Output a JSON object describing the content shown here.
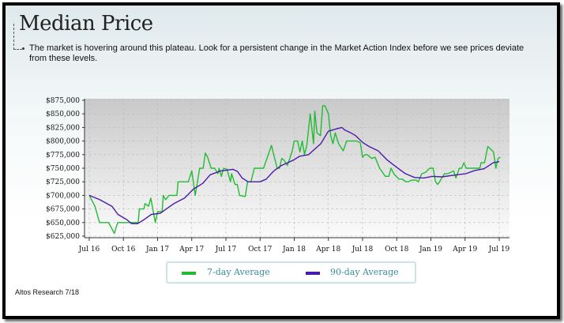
{
  "title": "Median Price",
  "description": "The market is hovering around this plateau. Look for a persistent change in the Market Action Index before we see prices deviate from these levels.",
  "footer": "Altos Research 7/18",
  "chart_data": {
    "type": "line",
    "title": "Median Price",
    "xlabel": "",
    "ylabel": "",
    "x_unit": "months since Jul 2016",
    "xlim": [
      -0.4,
      36.4
    ],
    "ylim": [
      625000,
      875000
    ],
    "grid": true,
    "legend_position": "bottom-center",
    "x_ticks": [
      {
        "m": 0,
        "label": "Jul 16"
      },
      {
        "m": 3,
        "label": "Oct 16"
      },
      {
        "m": 6,
        "label": "Jan 17"
      },
      {
        "m": 9,
        "label": "Apr 17"
      },
      {
        "m": 12,
        "label": "Jul 17"
      },
      {
        "m": 15,
        "label": "Oct 17"
      },
      {
        "m": 18,
        "label": "Jan 18"
      },
      {
        "m": 21,
        "label": "Apr 18"
      },
      {
        "m": 24,
        "label": "Jul 18"
      },
      {
        "m": 27,
        "label": "Oct 18"
      },
      {
        "m": 30,
        "label": "Jan 19"
      },
      {
        "m": 33,
        "label": "Apr 19"
      },
      {
        "m": 36,
        "label": "Jul 19"
      }
    ],
    "y_ticks": [
      {
        "v": 625000,
        "label": "$625,000"
      },
      {
        "v": 650000,
        "label": "$650,000"
      },
      {
        "v": 675000,
        "label": "$675,000"
      },
      {
        "v": 700000,
        "label": "$700,000"
      },
      {
        "v": 725000,
        "label": "$725,000"
      },
      {
        "v": 750000,
        "label": "$750,000"
      },
      {
        "v": 775000,
        "label": "$775,000"
      },
      {
        "v": 800000,
        "label": "$800,000"
      },
      {
        "v": 825000,
        "label": "$825,000"
      },
      {
        "v": 850000,
        "label": "$850,000"
      },
      {
        "v": 875000,
        "label": "$875,000"
      }
    ],
    "series": [
      {
        "name": "7-day Average",
        "color": "#22bb33",
        "x": [
          0,
          0.5,
          0.9,
          1.7,
          2.2,
          2.5,
          2.9,
          3.6,
          4.3,
          4.4,
          4.8,
          4.9,
          5.2,
          5.4,
          5.8,
          6.0,
          6.4,
          6.5,
          6.7,
          7.0,
          7.7,
          7.8,
          8.7,
          9.0,
          9.3,
          9.7,
          10.0,
          10.2,
          10.4,
          10.7,
          11.0,
          11.3,
          11.4,
          11.6,
          11.8,
          12.1,
          12.4,
          12.5,
          12.8,
          13.0,
          13.2,
          13.7,
          13.9,
          14.2,
          14.5,
          14.9,
          15.3,
          15.8,
          16.0,
          16.2,
          16.5,
          16.7,
          16.9,
          17.1,
          17.4,
          17.8,
          18.0,
          18.3,
          18.5,
          18.7,
          18.9,
          19.1,
          19.4,
          19.7,
          19.8,
          20.0,
          20.3,
          20.5,
          20.7,
          21.0,
          21.2,
          21.4,
          21.6,
          21.9,
          22.3,
          22.6,
          23.5,
          23.8,
          24.0,
          24.2,
          24.4,
          24.8,
          25.1,
          25.5,
          26.0,
          26.3,
          26.5,
          26.8,
          27.2,
          27.5,
          27.8,
          28.0,
          28.3,
          28.7,
          28.9,
          29.2,
          29.5,
          29.9,
          30.2,
          30.4,
          30.6,
          31.2,
          31.5,
          31.7,
          32.0,
          32.2,
          32.5,
          32.7,
          32.9,
          33.1,
          33.6,
          34.3,
          34.4,
          34.7,
          35.0,
          35.5,
          35.7,
          35.9,
          36.1
        ],
        "y": [
          700000,
          680000,
          650000,
          650000,
          630000,
          650000,
          650000,
          650000,
          650000,
          675000,
          675000,
          685000,
          680000,
          695000,
          650000,
          670000,
          670000,
          700000,
          692000,
          700000,
          700000,
          725000,
          725000,
          745000,
          700000,
          750000,
          750000,
          778000,
          770000,
          750000,
          750000,
          740000,
          750000,
          735000,
          750000,
          748000,
          725000,
          740000,
          720000,
          720000,
          700000,
          698000,
          725000,
          725000,
          750000,
          750000,
          750000,
          780000,
          792000,
          775000,
          750000,
          750000,
          768000,
          765000,
          755000,
          780000,
          800000,
          800000,
          780000,
          800000,
          775000,
          792000,
          850000,
          795000,
          855000,
          815000,
          810000,
          865000,
          865000,
          850000,
          810000,
          795000,
          815000,
          795000,
          782000,
          800000,
          800000,
          797000,
          770000,
          775000,
          775000,
          768000,
          770000,
          750000,
          735000,
          735000,
          750000,
          738000,
          730000,
          730000,
          725000,
          725000,
          728000,
          728000,
          725000,
          740000,
          742000,
          750000,
          750000,
          725000,
          720000,
          740000,
          740000,
          742000,
          745000,
          732000,
          750000,
          750000,
          760000,
          750000,
          750000,
          750000,
          760000,
          760000,
          790000,
          780000,
          750000,
          768000,
          770000
        ]
      },
      {
        "name": "90-day Average",
        "color": "#4a1aaa",
        "x": [
          0,
          0.93,
          1.99,
          2.52,
          3.32,
          3.72,
          4.25,
          4.78,
          5.45,
          6.24,
          6.77,
          7.44,
          8.37,
          9.17,
          9.96,
          10.62,
          11.55,
          12.62,
          13.02,
          13.42,
          13.95,
          15.01,
          15.54,
          16.21,
          16.87,
          17.93,
          18.47,
          19.26,
          19.79,
          20.33,
          20.99,
          21.79,
          22.18,
          22.45,
          22.98,
          23.38,
          24.04,
          24.57,
          25.37,
          26.17,
          26.97,
          27.76,
          28.56,
          29.36,
          30.15,
          30.95,
          32.28,
          33.07,
          33.87,
          34.67,
          35.47,
          36.0
        ],
        "y": [
          700000,
          692000,
          680000,
          665000,
          655000,
          648000,
          648000,
          655000,
          665000,
          667000,
          675000,
          685000,
          695000,
          712000,
          722000,
          738000,
          745000,
          748000,
          744000,
          732000,
          725000,
          725000,
          730000,
          745000,
          755000,
          765000,
          772000,
          775000,
          785000,
          795000,
          818000,
          823000,
          825000,
          820000,
          815000,
          810000,
          797000,
          790000,
          782000,
          765000,
          752000,
          740000,
          733000,
          732000,
          735000,
          734000,
          738000,
          740000,
          746000,
          749000,
          760000,
          762000
        ]
      }
    ]
  }
}
